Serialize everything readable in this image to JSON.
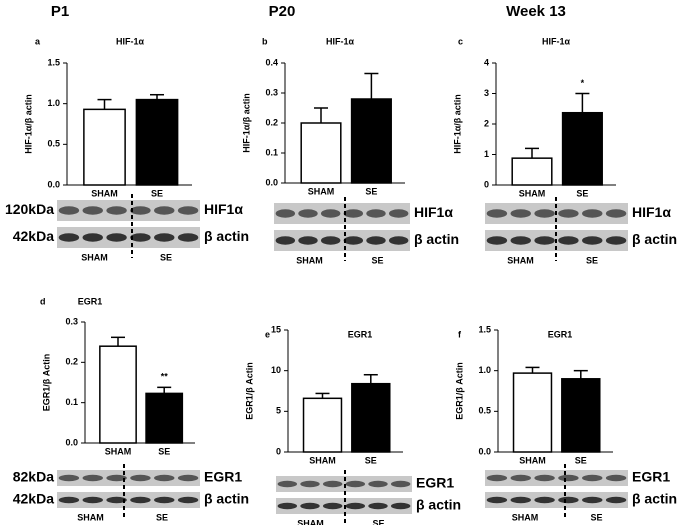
{
  "columns": [
    "P1",
    "P20",
    "Week 13"
  ],
  "chart_data": [
    {
      "type": "bar",
      "panel": "a",
      "title": "HIF-1α",
      "ylabel": "HIF-1α/β actin",
      "categories": [
        "SHAM",
        "SE"
      ],
      "values": [
        0.93,
        1.05
      ],
      "errors": [
        0.12,
        0.06
      ],
      "colors": [
        "#ffffff",
        "#000000"
      ],
      "ylim": [
        0,
        1.5
      ],
      "yticks": [
        {
          "value": 0,
          "label": "0.0"
        },
        0.5,
        {
          "value": 1,
          "label": "1.0"
        },
        1.5
      ],
      "blot_left": [
        "120kDa",
        "42kDa"
      ],
      "blot_right": [
        "HIF1α",
        "β actin"
      ],
      "blot_bottom": [
        "SHAM",
        "SE"
      ]
    },
    {
      "type": "bar",
      "panel": "b",
      "title": "HIF-1α",
      "ylabel": "HIF-1α/β actin",
      "categories": [
        "SHAM",
        "SE"
      ],
      "values": [
        0.2,
        0.28
      ],
      "errors": [
        0.05,
        0.085
      ],
      "colors": [
        "#ffffff",
        "#000000"
      ],
      "ylim": [
        0,
        0.4
      ],
      "yticks": [
        {
          "value": 0,
          "label": "0.0"
        },
        0.1,
        0.2,
        0.3,
        0.4
      ],
      "blot_right": [
        "HIF1α",
        "β actin"
      ],
      "blot_bottom": [
        "SHAM",
        "SE"
      ]
    },
    {
      "type": "bar",
      "panel": "c",
      "title": "HIF-1α",
      "ylabel": "HIF-1α/β actin",
      "categories": [
        "SHAM",
        "SE"
      ],
      "values": [
        0.88,
        2.37
      ],
      "errors": [
        0.32,
        0.63
      ],
      "value_annotations": [
        null,
        "*"
      ],
      "colors": [
        "#ffffff",
        "#000000"
      ],
      "ylim": [
        0,
        4
      ],
      "yticks": [
        0,
        1,
        2,
        3,
        4
      ],
      "blot_right": [
        "HIF1α",
        "β actin"
      ],
      "blot_bottom": [
        "SHAM",
        "SE"
      ]
    },
    {
      "type": "bar",
      "panel": "d",
      "title": "EGR1",
      "ylabel": "EGR1/β Actin",
      "categories": [
        "SHAM",
        "SE"
      ],
      "values": [
        0.24,
        0.123
      ],
      "errors": [
        0.022,
        0.015
      ],
      "value_annotations": [
        null,
        "**"
      ],
      "colors": [
        "#ffffff",
        "#000000"
      ],
      "ylim": [
        0,
        0.3
      ],
      "yticks": [
        {
          "value": 0,
          "label": "0.0"
        },
        0.1,
        0.2,
        0.3
      ],
      "blot_left": [
        "82kDa",
        "42kDa"
      ],
      "blot_right": [
        "EGR1",
        "β actin"
      ],
      "blot_bottom": [
        "SHAM",
        "SE"
      ]
    },
    {
      "type": "bar",
      "panel": "e",
      "title": "EGR1",
      "ylabel": "EGR1/β Actin",
      "categories": [
        "SHAM",
        "SE"
      ],
      "values": [
        6.6,
        8.4
      ],
      "errors": [
        0.6,
        1.1
      ],
      "colors": [
        "#ffffff",
        "#000000"
      ],
      "ylim": [
        0,
        15
      ],
      "yticks": [
        0,
        5,
        10,
        15
      ],
      "blot_right": [
        "EGR1",
        "β actin"
      ],
      "blot_bottom": [
        "SHAM",
        "SE"
      ]
    },
    {
      "type": "bar",
      "panel": "f",
      "title": "EGR1",
      "ylabel": "EGR1/β Actin",
      "categories": [
        "SHAM",
        "SE"
      ],
      "values": [
        0.97,
        0.9
      ],
      "errors": [
        0.07,
        0.1
      ],
      "colors": [
        "#ffffff",
        "#000000"
      ],
      "ylim": [
        0,
        1.5
      ],
      "yticks": [
        {
          "value": 0,
          "label": "0.0"
        },
        0.5,
        {
          "value": 1,
          "label": "1.0"
        },
        1.5
      ],
      "blot_right": [
        "EGR1",
        "β actin"
      ],
      "blot_bottom": [
        "SHAM",
        "SE"
      ]
    }
  ]
}
